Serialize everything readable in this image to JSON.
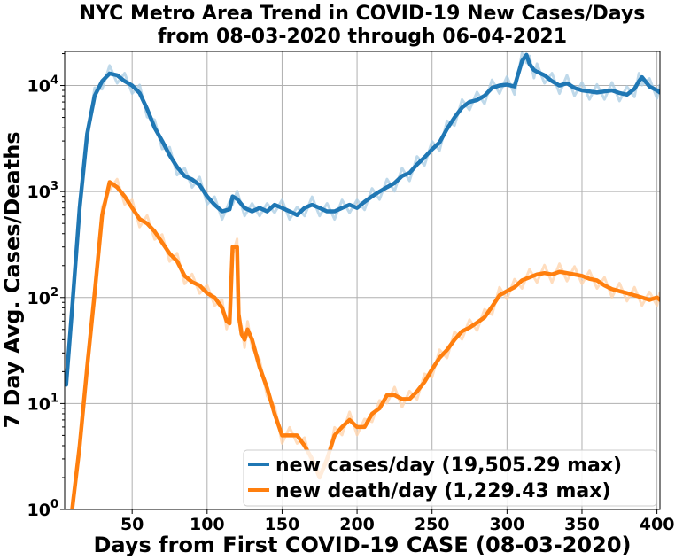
{
  "chart_data": {
    "type": "line",
    "title": "NYC Metro Area Trend in COVID-19 New Cases/Days",
    "subtitle": "from 08-03-2020 through 06-04-2021",
    "xlabel": "Days from First COVID-19 CASE (08-03-2020)",
    "ylabel": "7 Day Avg. Cases/Deaths",
    "xlim": [
      5,
      402
    ],
    "ylim": [
      1,
      21000
    ],
    "yscale": "log",
    "grid": true,
    "legend_position": "bottom-right",
    "x_ticks": [
      50,
      100,
      150,
      200,
      250,
      300,
      350,
      400
    ],
    "y_ticks": [
      {
        "value": 1,
        "base": "10",
        "exp": "0"
      },
      {
        "value": 10,
        "base": "10",
        "exp": "1"
      },
      {
        "value": 100,
        "base": "10",
        "exp": "2"
      },
      {
        "value": 1000,
        "base": "10",
        "exp": "3"
      },
      {
        "value": 10000,
        "base": "10",
        "exp": "4"
      }
    ],
    "series": [
      {
        "name": "new cases/day (19,505.29 max)",
        "color": "#1f77b4",
        "x": [
          6,
          10,
          15,
          20,
          25,
          30,
          35,
          40,
          45,
          50,
          55,
          60,
          65,
          70,
          75,
          80,
          85,
          90,
          95,
          100,
          105,
          110,
          115,
          117,
          120,
          125,
          130,
          135,
          140,
          145,
          150,
          155,
          160,
          165,
          170,
          175,
          180,
          185,
          190,
          195,
          200,
          205,
          210,
          215,
          220,
          225,
          230,
          235,
          240,
          245,
          250,
          255,
          260,
          265,
          270,
          275,
          280,
          285,
          290,
          295,
          300,
          305,
          310,
          313,
          315,
          318,
          320,
          325,
          330,
          335,
          340,
          345,
          350,
          355,
          360,
          365,
          370,
          375,
          380,
          385,
          388,
          390,
          395,
          400,
          402
        ],
        "y": [
          15,
          80,
          700,
          3500,
          8000,
          11000,
          13000,
          12500,
          11000,
          10000,
          8500,
          6000,
          4000,
          3000,
          2200,
          1700,
          1400,
          1300,
          1150,
          900,
          750,
          650,
          680,
          900,
          850,
          700,
          650,
          700,
          650,
          750,
          700,
          650,
          600,
          700,
          750,
          700,
          650,
          650,
          700,
          750,
          700,
          800,
          900,
          1000,
          1100,
          1200,
          1400,
          1500,
          1800,
          2100,
          2500,
          2900,
          3900,
          5000,
          6200,
          7000,
          7300,
          8000,
          9500,
          10000,
          10200,
          9800,
          17000,
          19505,
          16000,
          14000,
          13500,
          12500,
          11000,
          10000,
          10500,
          9500,
          9000,
          8800,
          8600,
          8800,
          9000,
          8500,
          8200,
          9300,
          11000,
          12000,
          9800,
          9000,
          8600
        ]
      },
      {
        "name": "new death/day (1,229.43 max)",
        "color": "#ff7f0e",
        "x": [
          10,
          15,
          20,
          25,
          30,
          35,
          40,
          45,
          50,
          55,
          60,
          65,
          70,
          75,
          80,
          85,
          90,
          95,
          100,
          105,
          110,
          113,
          115,
          117,
          120,
          121,
          123,
          125,
          127,
          130,
          135,
          140,
          145,
          150,
          155,
          160,
          165,
          170,
          175,
          180,
          185,
          190,
          195,
          200,
          205,
          210,
          215,
          220,
          225,
          230,
          235,
          240,
          245,
          250,
          255,
          260,
          265,
          270,
          275,
          280,
          285,
          290,
          295,
          300,
          305,
          310,
          315,
          320,
          325,
          330,
          335,
          340,
          345,
          350,
          355,
          360,
          365,
          370,
          375,
          380,
          385,
          390,
          395,
          400,
          402
        ],
        "y": [
          1,
          4,
          22,
          110,
          600,
          1229,
          1100,
          900,
          700,
          550,
          500,
          420,
          330,
          260,
          220,
          160,
          140,
          130,
          110,
          100,
          80,
          60,
          57,
          300,
          300,
          70,
          45,
          40,
          50,
          40,
          22,
          14,
          8,
          5,
          5,
          5,
          4,
          3,
          2,
          3,
          5,
          6,
          7,
          6,
          6,
          8,
          9,
          12,
          12,
          11,
          11,
          13,
          16,
          21,
          27,
          32,
          40,
          48,
          52,
          58,
          65,
          82,
          105,
          115,
          125,
          145,
          155,
          165,
          170,
          165,
          175,
          170,
          165,
          160,
          150,
          145,
          130,
          120,
          115,
          110,
          105,
          100,
          95,
          100,
          95
        ]
      }
    ]
  }
}
